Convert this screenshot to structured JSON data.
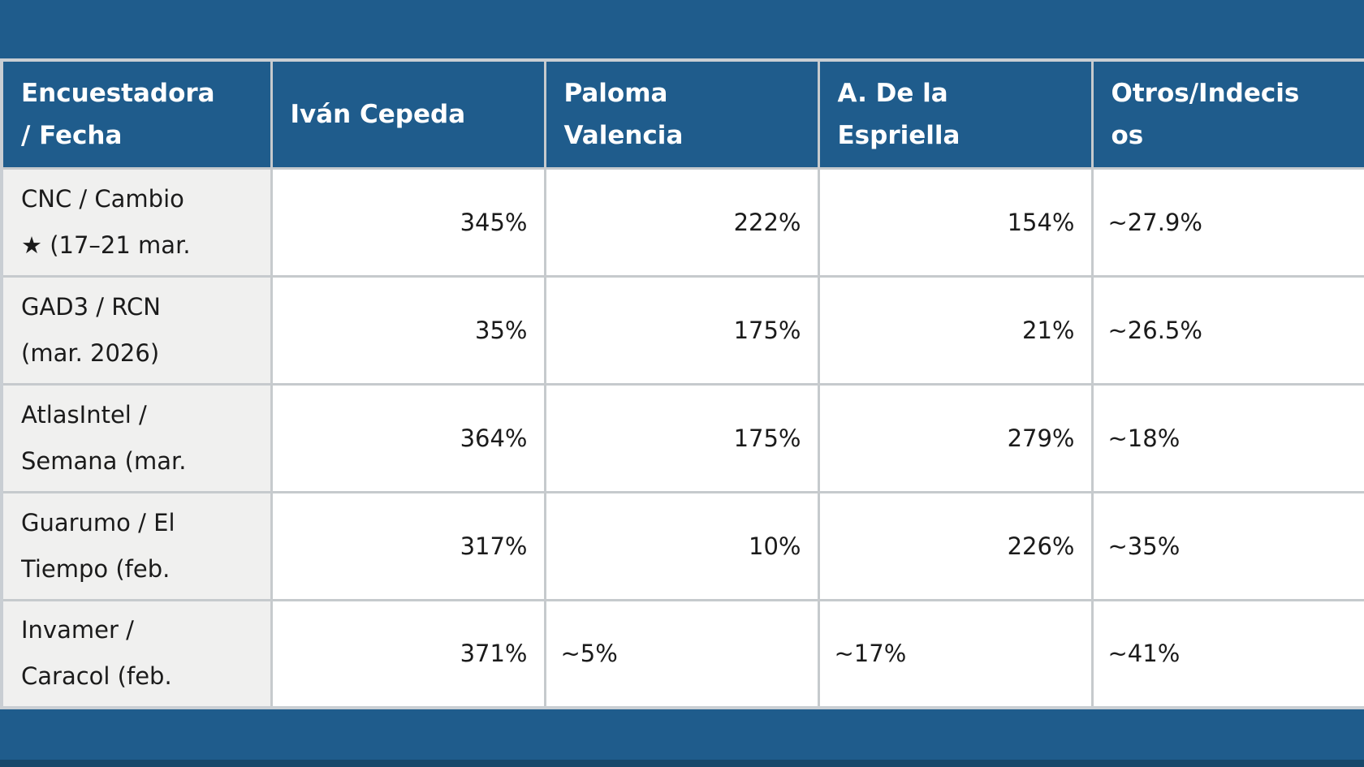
{
  "page": {
    "background_color": "#1f5c8c",
    "grid_color": "#c6cacd",
    "header_bg_color": "#1f5c8c",
    "header_text_color": "#ffffff",
    "row_label_bg_color": "#f0f0ef",
    "cell_bg_color": "#ffffff",
    "body_text_color": "#1b1b1b"
  },
  "table": {
    "columns": [
      {
        "display": "Encuestadora\n/ Fecha"
      },
      {
        "display": "Iván Cepeda"
      },
      {
        "display": "Paloma\nValencia"
      },
      {
        "display": "A. De la\nEspriella"
      },
      {
        "display": "Otros/Indecis\nos"
      }
    ],
    "rows": [
      {
        "label": "CNC / Cambio\n★ (17–21 mar.",
        "values": [
          "345%",
          "222%",
          "154%",
          "~27.9%"
        ]
      },
      {
        "label": "GAD3 / RCN\n(mar. 2026)",
        "values": [
          "35%",
          "175%",
          "21%",
          "~26.5%"
        ]
      },
      {
        "label": "AtlasIntel /\nSemana (mar.",
        "values": [
          "364%",
          "175%",
          "279%",
          "~18%"
        ]
      },
      {
        "label": "Guarumo / El\nTiempo (feb.",
        "values": [
          "317%",
          "10%",
          "226%",
          "~35%"
        ]
      },
      {
        "label": "Invamer /\nCaracol (feb.",
        "values": [
          "371%",
          "~5%",
          "~17%",
          "~41%"
        ]
      }
    ]
  },
  "chart_data": {
    "type": "table",
    "columns": [
      "Encuestadora / Fecha",
      "Iván Cepeda",
      "Paloma Valencia",
      "A. De la Espriella",
      "Otros/Indecisos"
    ],
    "rows": [
      [
        "CNC / Cambio ★ (17–21 mar.",
        "345%",
        "222%",
        "154%",
        "~27.9%"
      ],
      [
        "GAD3 / RCN (mar. 2026)",
        "35%",
        "175%",
        "21%",
        "~26.5%"
      ],
      [
        "AtlasIntel / Semana (mar.",
        "364%",
        "175%",
        "279%",
        "~18%"
      ],
      [
        "Guarumo / El Tiempo (feb.",
        "317%",
        "10%",
        "226%",
        "~35%"
      ],
      [
        "Invamer / Caracol (feb.",
        "371%",
        "~5%",
        "~17%",
        "~41%"
      ]
    ],
    "notes": "Colombian presidential polling table; numeric cells right-aligned, approximate (~) cells left-aligned"
  }
}
